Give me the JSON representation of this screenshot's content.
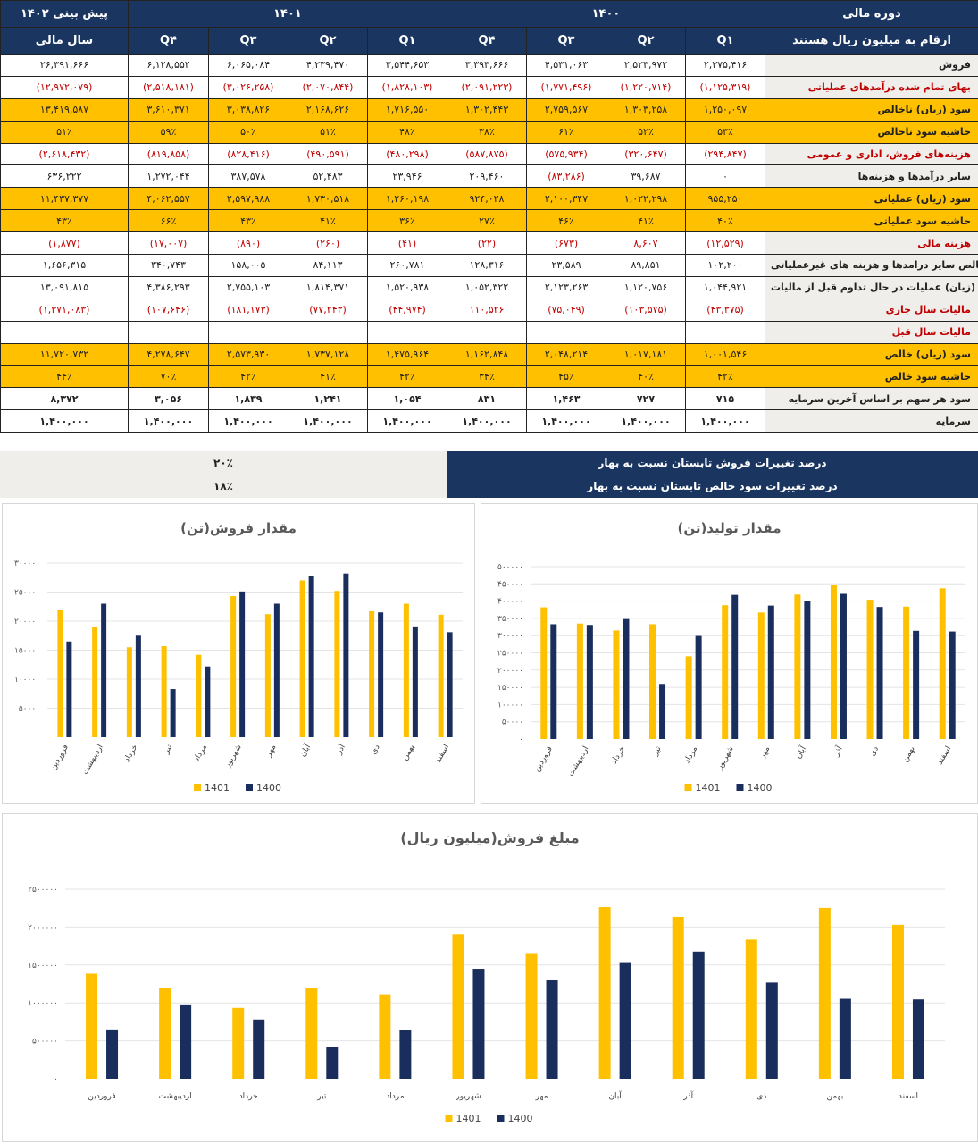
{
  "table": {
    "header_groups": {
      "forecast": "پیش بینی ۱۴۰۲",
      "y1401": "۱۴۰۱",
      "y1400": "۱۴۰۰",
      "period": "دوره مالی"
    },
    "sub_headers": [
      "سال مالی",
      "Q۴",
      "Q۳",
      "Q۲",
      "Q۱",
      "Q۴",
      "Q۳",
      "Q۲",
      "Q۱",
      "ارقام به میلیون ریال هستند"
    ],
    "rows": [
      {
        "label": "فروش",
        "style": "normal",
        "values": [
          "۲۶,۳۹۱,۶۶۶",
          "۶,۱۲۸,۵۵۲",
          "۶,۰۶۵,۰۸۴",
          "۴,۲۳۹,۴۷۰",
          "۳,۵۴۴,۶۵۳",
          "۳,۳۹۳,۶۶۶",
          "۴,۵۳۱,۰۶۳",
          "۲,۵۲۳,۹۷۲",
          "۲,۳۷۵,۴۱۶"
        ]
      },
      {
        "label": "بهای تمام شده درآمدهای عملیاتی",
        "style": "neg",
        "values": [
          "(۱۲,۹۷۲,۰۷۹)",
          "(۲,۵۱۸,۱۸۱)",
          "(۳,۰۲۶,۲۵۸)",
          "(۲,۰۷۰,۸۴۴)",
          "(۱,۸۲۸,۱۰۳)",
          "(۲,۰۹۱,۲۲۳)",
          "(۱,۷۷۱,۴۹۶)",
          "(۱,۲۲۰,۷۱۴)",
          "(۱,۱۲۵,۳۱۹)"
        ]
      },
      {
        "label": "سود (زیان) ناخالص",
        "style": "hl",
        "values": [
          "۱۳,۴۱۹,۵۸۷",
          "۳,۶۱۰,۳۷۱",
          "۳,۰۳۸,۸۲۶",
          "۲,۱۶۸,۶۲۶",
          "۱,۷۱۶,۵۵۰",
          "۱,۳۰۲,۴۴۳",
          "۲,۷۵۹,۵۶۷",
          "۱,۳۰۳,۲۵۸",
          "۱,۲۵۰,۰۹۷"
        ]
      },
      {
        "label": "حاشیه سود ناخالص",
        "style": "hl",
        "values": [
          "۵۱٪",
          "۵۹٪",
          "۵۰٪",
          "۵۱٪",
          "۴۸٪",
          "۳۸٪",
          "۶۱٪",
          "۵۲٪",
          "۵۳٪"
        ]
      },
      {
        "label": "هزینه‌های فروش، اداری و عمومی",
        "style": "neg",
        "values": [
          "(۲,۶۱۸,۴۳۲)",
          "(۸۱۹,۸۵۸)",
          "(۸۲۸,۴۱۶)",
          "(۴۹۰,۵۹۱)",
          "(۴۸۰,۲۹۸)",
          "(۵۸۷,۸۷۵)",
          "(۵۷۵,۹۳۴)",
          "(۳۲۰,۶۴۷)",
          "(۲۹۴,۸۴۷)"
        ]
      },
      {
        "label": "سایر درآمدها و هزینه‌ها",
        "style": "normal",
        "values": [
          "۶۳۶,۲۲۲",
          "۱,۲۷۲,۰۴۴",
          "۳۸۷,۵۷۸",
          "۵۲,۴۸۳",
          "۲۳,۹۴۶",
          "۲۰۹,۴۶۰",
          "(۸۳,۲۸۶)",
          "۳۹,۶۸۷",
          "۰"
        ]
      },
      {
        "label": "سود (زیان) عملیاتی",
        "style": "hl",
        "values": [
          "۱۱,۴۳۷,۳۷۷",
          "۴,۰۶۲,۵۵۷",
          "۲,۵۹۷,۹۸۸",
          "۱,۷۳۰,۵۱۸",
          "۱,۲۶۰,۱۹۸",
          "۹۲۴,۰۲۸",
          "۲,۱۰۰,۳۴۷",
          "۱,۰۲۲,۲۹۸",
          "۹۵۵,۲۵۰"
        ]
      },
      {
        "label": "حاشیه سود عملیاتی",
        "style": "hl",
        "values": [
          "۴۳٪",
          "۶۶٪",
          "۴۳٪",
          "۴۱٪",
          "۳۶٪",
          "۲۷٪",
          "۴۶٪",
          "۴۱٪",
          "۴۰٪"
        ]
      },
      {
        "label": "هزینه مالی",
        "style": "neg",
        "values": [
          "(۱,۸۷۷)",
          "(۱۷,۰۰۷)",
          "(۸۹۰)",
          "(۲۶۰)",
          "(۴۱)",
          "(۲۲)",
          "(۶۷۳)",
          "۸,۶۰۷",
          "(۱۲,۵۲۹)"
        ]
      },
      {
        "label": "خالص سایر درامدها و هزینه های غیرعملیاتی",
        "style": "normal",
        "values": [
          "۱,۶۵۶,۳۱۵",
          "۳۴۰,۷۴۳",
          "۱۵۸,۰۰۵",
          "۸۴,۱۱۳",
          "۲۶۰,۷۸۱",
          "۱۲۸,۳۱۶",
          "۲۳,۵۸۹",
          "۸۹,۸۵۱",
          "۱۰۲,۲۰۰"
        ]
      },
      {
        "label": "سود (زیان) عملیات در حال تداوم قبل از مالیات",
        "style": "normal",
        "values": [
          "۱۳,۰۹۱,۸۱۵",
          "۴,۳۸۶,۲۹۳",
          "۲,۷۵۵,۱۰۳",
          "۱,۸۱۴,۳۷۱",
          "۱,۵۲۰,۹۳۸",
          "۱,۰۵۲,۳۲۲",
          "۲,۱۲۳,۲۶۳",
          "۱,۱۲۰,۷۵۶",
          "۱,۰۴۴,۹۲۱"
        ]
      },
      {
        "label": "مالیات سال جاری",
        "style": "neg",
        "values": [
          "(۱,۳۷۱,۰۸۳)",
          "(۱۰۷,۶۴۶)",
          "(۱۸۱,۱۷۳)",
          "(۷۷,۲۴۳)",
          "(۴۴,۹۷۴)",
          "۱۱۰,۵۲۶",
          "(۷۵,۰۴۹)",
          "(۱۰۳,۵۷۵)",
          "(۴۳,۳۷۵)"
        ]
      },
      {
        "label": "مالیات سال قبل",
        "style": "neg",
        "values": [
          "",
          "",
          "",
          "",
          "",
          "",
          "",
          "",
          ""
        ]
      },
      {
        "label": "سود (زیان) خالص",
        "style": "hl",
        "values": [
          "۱۱,۷۲۰,۷۳۲",
          "۴,۲۷۸,۶۴۷",
          "۲,۵۷۳,۹۳۰",
          "۱,۷۳۷,۱۲۸",
          "۱,۴۷۵,۹۶۴",
          "۱,۱۶۲,۸۴۸",
          "۲,۰۴۸,۲۱۴",
          "۱,۰۱۷,۱۸۱",
          "۱,۰۰۱,۵۴۶"
        ]
      },
      {
        "label": "حاشیه سود خالص",
        "style": "hl",
        "values": [
          "۴۴٪",
          "۷۰٪",
          "۴۲٪",
          "۴۱٪",
          "۴۲٪",
          "۳۴٪",
          "۴۵٪",
          "۴۰٪",
          "۴۲٪"
        ]
      },
      {
        "label": "سود هر سهم بر اساس آخرین سرمایه",
        "style": "bold",
        "values": [
          "۸,۳۷۲",
          "۳,۰۵۶",
          "۱,۸۳۹",
          "۱,۲۴۱",
          "۱,۰۵۴",
          "۸۳۱",
          "۱,۴۶۳",
          "۷۲۷",
          "۷۱۵"
        ]
      },
      {
        "label": "سرمایه",
        "style": "bold",
        "values": [
          "۱,۴۰۰,۰۰۰",
          "۱,۴۰۰,۰۰۰",
          "۱,۴۰۰,۰۰۰",
          "۱,۴۰۰,۰۰۰",
          "۱,۴۰۰,۰۰۰",
          "۱,۴۰۰,۰۰۰",
          "۱,۴۰۰,۰۰۰",
          "۱,۴۰۰,۰۰۰",
          "۱,۴۰۰,۰۰۰"
        ]
      }
    ]
  },
  "notes": [
    {
      "label": "درصد تغییرات فروش تابستان نسبت به بهار",
      "value": "۲۰٪"
    },
    {
      "label": "درصد تغییرات سود خالص تابستان نسبت به بهار",
      "value": "۱۸٪"
    }
  ],
  "colors": {
    "s1401": "#ffc000",
    "s1400": "#1a2e5e",
    "navy": "#1a3560",
    "highlight": "#ffc000",
    "negative": "#c00000",
    "label_bg": "#efeeea"
  },
  "chart_data": [
    {
      "type": "bar",
      "title": "مقدار فروش(تن)",
      "categories": [
        "فروردین",
        "اردیبهشت",
        "خرداد",
        "تیر",
        "مرداد",
        "شهریور",
        "مهر",
        "آبان",
        "آذر",
        "دی",
        "بهمن",
        "اسفند"
      ],
      "series": [
        {
          "name": "1401",
          "values": [
            220000,
            190000,
            155000,
            157000,
            142000,
            243000,
            212000,
            270000,
            252000,
            217000,
            230000,
            211000
          ]
        },
        {
          "name": "1400",
          "values": [
            165000,
            230000,
            175000,
            83000,
            122000,
            251000,
            230000,
            278000,
            282000,
            215000,
            191000,
            181000
          ]
        }
      ],
      "yticks": [
        "۰",
        "۵۰۰۰۰",
        "۱۰۰۰۰۰",
        "۱۵۰۰۰۰",
        "۲۰۰۰۰۰",
        "۲۵۰۰۰۰",
        "۳۰۰۰۰۰"
      ],
      "ylim": [
        0,
        300000
      ],
      "grid": true,
      "legend": "bottom"
    },
    {
      "type": "bar",
      "title": "مقدار تولید(تن)",
      "categories": [
        "فروردین",
        "اردیبهشت",
        "خرداد",
        "تیر",
        "مرداد",
        "شهریور",
        "مهر",
        "آبان",
        "آذر",
        "دی",
        "بهمن",
        "اسفند"
      ],
      "series": [
        {
          "name": "1401",
          "values": [
            382000,
            335000,
            315000,
            333000,
            240000,
            388000,
            367000,
            419000,
            447000,
            404000,
            384000,
            437000
          ]
        },
        {
          "name": "1400",
          "values": [
            333000,
            331000,
            348000,
            160000,
            299000,
            418000,
            387000,
            400000,
            421000,
            383000,
            314000,
            312000
          ]
        }
      ],
      "yticks": [
        "۰",
        "۵۰۰۰۰",
        "۱۰۰۰۰۰",
        "۱۵۰۰۰۰",
        "۲۰۰۰۰۰",
        "۲۵۰۰۰۰",
        "۳۰۰۰۰۰",
        "۳۵۰۰۰۰",
        "۴۰۰۰۰۰",
        "۴۵۰۰۰۰",
        "۵۰۰۰۰۰"
      ],
      "ylim": [
        0,
        500000
      ],
      "grid": true,
      "legend": "bottom"
    },
    {
      "type": "bar",
      "title": "مبلغ فروش(میلیون ریال)",
      "categories": [
        "فروردین",
        "اردیبهشت",
        "خرداد",
        "تیر",
        "مرداد",
        "شهریور",
        "مهر",
        "آبان",
        "آذر",
        "دی",
        "بهمن",
        "اسفند"
      ],
      "series": [
        {
          "name": "1401",
          "values": [
            1386000,
            1198000,
            934000,
            1196000,
            1113000,
            1907000,
            1657000,
            2264000,
            2135000,
            1835000,
            2254000,
            2030000
          ]
        },
        {
          "name": "1400",
          "values": [
            650000,
            980000,
            781000,
            413000,
            645000,
            1450000,
            1306000,
            1538000,
            1677000,
            1269000,
            1055000,
            1047000
          ]
        }
      ],
      "yticks": [
        "۰",
        "۵۰۰۰۰۰",
        "۱۰۰۰۰۰۰",
        "۱۵۰۰۰۰۰",
        "۲۰۰۰۰۰۰",
        "۲۵۰۰۰۰۰"
      ],
      "ylim": [
        0,
        2500000
      ],
      "grid": true,
      "legend": "bottom"
    }
  ]
}
